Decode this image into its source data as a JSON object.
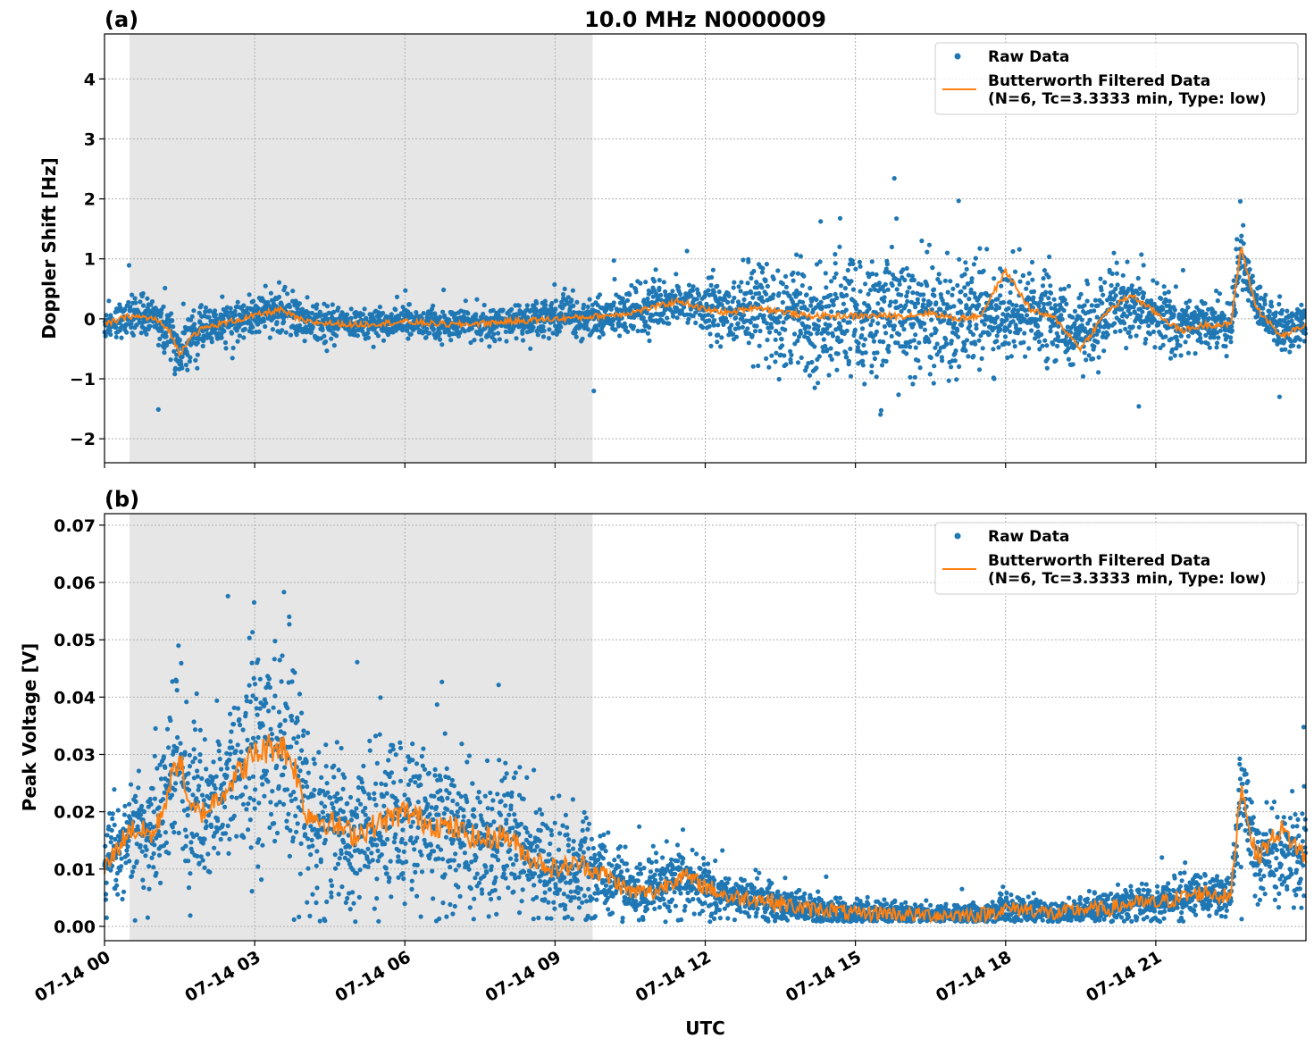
{
  "chart_data": [
    {
      "type": "line",
      "panel_label": "(a)",
      "title": "10.0 MHz N0000009",
      "xlabel": "",
      "ylabel": "Doppler Shift [Hz]",
      "xlim_hours": [
        0,
        24
      ],
      "ylim": [
        -2.4,
        4.75
      ],
      "yticks": [
        -2,
        -1,
        0,
        1,
        2,
        3,
        4
      ],
      "ytick_labels": [
        "−2",
        "−1",
        "0",
        "1",
        "2",
        "3",
        "4"
      ],
      "shaded_interval_hours": [
        0.5,
        9.75
      ],
      "legend_position": "upper-right",
      "colors": {
        "raw": "#1f77b4",
        "filtered": "#ff7f0e",
        "shade": "#e6e6e6"
      },
      "series": [
        {
          "name": "Raw Data",
          "style": "scatter",
          "x": [
            0,
            0.5,
            1.0,
            1.3,
            1.5,
            1.7,
            2.0,
            3.0,
            3.5,
            4.0,
            5.0,
            6.0,
            7.0,
            8.0,
            9.0,
            10.0,
            10.5,
            11.0,
            11.5,
            12.0,
            12.5,
            13.0,
            14.0,
            15.0,
            16.0,
            16.5,
            17.0,
            17.5,
            18.0,
            18.5,
            19.0,
            19.5,
            20.0,
            20.5,
            21.0,
            21.5,
            22.0,
            22.5,
            22.7,
            23.0,
            23.5,
            24.0
          ],
          "y": [
            -0.1,
            0.05,
            0.0,
            -0.2,
            -0.6,
            -0.3,
            -0.15,
            0.05,
            0.15,
            -0.05,
            -0.1,
            -0.05,
            -0.1,
            -0.05,
            0.0,
            0.05,
            0.1,
            0.2,
            0.3,
            0.15,
            0.1,
            0.2,
            0.05,
            0.05,
            0.05,
            0.1,
            0.0,
            0.05,
            0.1,
            0.15,
            0.0,
            -0.3,
            0.1,
            0.2,
            0.1,
            -0.1,
            -0.1,
            -0.1,
            1.2,
            0.2,
            -0.2,
            -0.1
          ],
          "spread": [
            0.2,
            0.25,
            0.25,
            0.3,
            0.4,
            0.35,
            0.25,
            0.25,
            0.3,
            0.25,
            0.2,
            0.2,
            0.2,
            0.2,
            0.3,
            0.3,
            0.3,
            0.3,
            0.3,
            0.35,
            0.45,
            0.6,
            0.75,
            0.85,
            0.85,
            0.85,
            0.75,
            0.7,
            0.6,
            0.55,
            0.55,
            0.5,
            0.5,
            0.45,
            0.45,
            0.4,
            0.35,
            0.35,
            0.5,
            0.35,
            0.3,
            0.3
          ]
        },
        {
          "name": "Butterworth Filtered Data\n(N=6, Tc=3.3333 min, Type: low)",
          "style": "line",
          "x": [
            0,
            0.5,
            1.0,
            1.3,
            1.5,
            1.7,
            2.0,
            3.0,
            3.5,
            4.0,
            5.0,
            6.0,
            7.0,
            8.0,
            9.0,
            10.0,
            10.5,
            11.0,
            11.5,
            12.0,
            12.5,
            13.0,
            14.0,
            15.0,
            16.0,
            16.5,
            17.0,
            17.5,
            18.0,
            18.5,
            19.0,
            19.5,
            20.0,
            20.5,
            21.0,
            21.5,
            22.0,
            22.5,
            22.7,
            23.0,
            23.5,
            24.0
          ],
          "y": [
            -0.1,
            0.05,
            0.0,
            -0.2,
            -0.6,
            -0.3,
            -0.15,
            0.05,
            0.15,
            -0.05,
            -0.1,
            -0.05,
            -0.1,
            -0.05,
            0.0,
            0.05,
            0.1,
            0.2,
            0.3,
            0.15,
            0.1,
            0.2,
            0.05,
            0.05,
            0.05,
            0.1,
            0.0,
            0.05,
            0.8,
            0.15,
            0.0,
            -0.5,
            0.1,
            0.4,
            0.1,
            -0.2,
            -0.1,
            -0.1,
            1.2,
            0.2,
            -0.3,
            -0.1
          ]
        }
      ]
    },
    {
      "type": "line",
      "panel_label": "(b)",
      "title": "",
      "xlabel": "UTC",
      "ylabel": "Peak Voltage [V]",
      "xlim_hours": [
        0,
        24
      ],
      "ylim": [
        -0.0025,
        0.072
      ],
      "yticks": [
        0.0,
        0.01,
        0.02,
        0.03,
        0.04,
        0.05,
        0.06,
        0.07
      ],
      "ytick_labels": [
        "0.00",
        "0.01",
        "0.02",
        "0.03",
        "0.04",
        "0.05",
        "0.06",
        "0.07"
      ],
      "xticks_hours": [
        0,
        3,
        6,
        9,
        12,
        15,
        18,
        21
      ],
      "xtick_labels": [
        "07-14 00",
        "07-14 03",
        "07-14 06",
        "07-14 09",
        "07-14 12",
        "07-14 15",
        "07-14 18",
        "07-14 21"
      ],
      "shaded_interval_hours": [
        0.5,
        9.75
      ],
      "legend_position": "upper-right",
      "colors": {
        "raw": "#1f77b4",
        "filtered": "#ff7f0e",
        "shade": "#e6e6e6"
      },
      "series": [
        {
          "name": "Raw Data",
          "style": "scatter",
          "x": [
            0,
            0.5,
            1.0,
            1.5,
            1.7,
            2.0,
            2.5,
            3.0,
            3.5,
            3.8,
            4.0,
            4.5,
            5.0,
            5.5,
            6.0,
            6.5,
            7.0,
            7.5,
            8.0,
            8.5,
            9.0,
            9.5,
            10.0,
            10.5,
            11.0,
            11.5,
            12.0,
            12.5,
            13.0,
            13.5,
            14.0,
            14.5,
            15.0,
            15.5,
            16.0,
            16.5,
            17.0,
            17.5,
            18.0,
            18.5,
            19.0,
            19.5,
            20.0,
            20.5,
            21.0,
            21.5,
            22.0,
            22.5,
            22.7,
            23.0,
            23.5,
            24.0
          ],
          "y": [
            0.01,
            0.017,
            0.016,
            0.03,
            0.02,
            0.02,
            0.025,
            0.03,
            0.032,
            0.028,
            0.02,
            0.018,
            0.016,
            0.018,
            0.02,
            0.018,
            0.017,
            0.015,
            0.016,
            0.012,
            0.01,
            0.011,
            0.009,
            0.006,
            0.006,
            0.009,
            0.007,
            0.005,
            0.005,
            0.004,
            0.003,
            0.003,
            0.002,
            0.0025,
            0.002,
            0.002,
            0.002,
            0.002,
            0.003,
            0.003,
            0.002,
            0.003,
            0.003,
            0.004,
            0.004,
            0.005,
            0.006,
            0.005,
            0.025,
            0.012,
            0.013,
            0.014
          ],
          "spread": [
            0.007,
            0.008,
            0.009,
            0.012,
            0.01,
            0.01,
            0.012,
            0.015,
            0.018,
            0.016,
            0.012,
            0.011,
            0.01,
            0.011,
            0.012,
            0.011,
            0.011,
            0.01,
            0.01,
            0.008,
            0.007,
            0.007,
            0.006,
            0.004,
            0.004,
            0.005,
            0.004,
            0.003,
            0.003,
            0.003,
            0.0025,
            0.002,
            0.002,
            0.002,
            0.0015,
            0.0015,
            0.0015,
            0.0015,
            0.002,
            0.002,
            0.0015,
            0.002,
            0.002,
            0.0025,
            0.0025,
            0.003,
            0.003,
            0.003,
            0.008,
            0.006,
            0.007,
            0.008
          ]
        },
        {
          "name": "Butterworth Filtered Data\n(N=6, Tc=3.3333 min, Type: low)",
          "style": "line",
          "x": [
            0,
            0.5,
            1.0,
            1.5,
            1.7,
            2.0,
            2.5,
            3.0,
            3.5,
            3.8,
            4.0,
            4.5,
            5.0,
            5.5,
            6.0,
            6.5,
            7.0,
            7.5,
            8.0,
            8.5,
            9.0,
            9.5,
            10.0,
            10.5,
            11.0,
            11.5,
            12.0,
            12.5,
            13.0,
            13.5,
            14.0,
            14.5,
            15.0,
            15.5,
            16.0,
            16.5,
            17.0,
            17.5,
            18.0,
            18.5,
            19.0,
            19.5,
            20.0,
            20.5,
            21.0,
            21.5,
            22.0,
            22.5,
            22.7,
            23.0,
            23.5,
            24.0
          ],
          "y": [
            0.01,
            0.017,
            0.016,
            0.03,
            0.02,
            0.02,
            0.025,
            0.03,
            0.032,
            0.028,
            0.02,
            0.018,
            0.016,
            0.018,
            0.02,
            0.018,
            0.017,
            0.015,
            0.016,
            0.012,
            0.01,
            0.011,
            0.009,
            0.006,
            0.006,
            0.009,
            0.007,
            0.005,
            0.005,
            0.004,
            0.003,
            0.003,
            0.002,
            0.0025,
            0.002,
            0.002,
            0.002,
            0.002,
            0.003,
            0.003,
            0.002,
            0.003,
            0.003,
            0.004,
            0.004,
            0.005,
            0.006,
            0.005,
            0.025,
            0.012,
            0.017,
            0.012
          ]
        }
      ]
    }
  ],
  "legend": {
    "raw_label": "Raw Data",
    "filtered_label_line1": "Butterworth Filtered Data",
    "filtered_label_line2": "(N=6, Tc=3.3333 min, Type: low)"
  }
}
